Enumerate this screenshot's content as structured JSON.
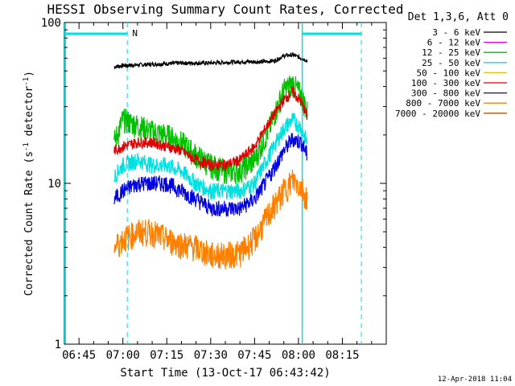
{
  "chart_data": {
    "type": "line",
    "title": "HESSI Observing Summary Count Rates, Corrected",
    "xlabel": "Start Time (13-Oct-17 06:43:42)",
    "ylabel_main": "Corrected Count Rate (s",
    "ylabel_sup1": "-1",
    "ylabel_mid": " detector",
    "ylabel_sup2": "-1",
    "ylabel_end": ")",
    "y_scale": "log",
    "ylim": [
      1,
      100
    ],
    "y_ticks": [
      {
        "value": 1,
        "label": "1"
      },
      {
        "value": 10,
        "label": "10"
      },
      {
        "value": 100,
        "label": "100"
      }
    ],
    "xlim_minutes": [
      -1.7,
      30.0
    ],
    "x_ticks": [
      {
        "value": -15,
        "label": "06:45"
      },
      {
        "value": 0,
        "label": "07:00"
      },
      {
        "value": 15,
        "label": "07:15"
      },
      {
        "value": 30,
        "label": "07:30"
      },
      {
        "value": 45,
        "label": "07:45"
      },
      {
        "value": 60,
        "label": "08:00"
      },
      {
        "value": 75,
        "label": "08:15"
      }
    ],
    "x_axis_minutes_from_0700": [
      -20,
      90
    ],
    "legend_header": "Det 1,3,6, Att 0",
    "legend_position": "right",
    "series": [
      {
        "name": "3 - 6 keV",
        "color": "#000000",
        "x": [
          -3,
          0,
          10,
          20,
          30,
          40,
          48,
          52,
          55,
          58,
          61,
          63
        ],
        "y": [
          53,
          54,
          55,
          56,
          56,
          57,
          57,
          58,
          62,
          63,
          60,
          58
        ]
      },
      {
        "name": "6 - 12 keV",
        "color": "#e000e0",
        "x": [],
        "y": []
      },
      {
        "name": "12 - 25 keV",
        "color": "#00c000",
        "x": [
          -3,
          0,
          5,
          10,
          15,
          20,
          25,
          30,
          35,
          40,
          45,
          50,
          55,
          58,
          61,
          63
        ],
        "y": [
          18,
          25,
          23,
          21,
          20,
          18,
          15,
          13,
          12,
          12,
          14,
          22,
          38,
          42,
          35,
          28
        ]
      },
      {
        "name": "25 - 50 keV",
        "color": "#00e0e0",
        "x": [
          -3,
          0,
          5,
          10,
          15,
          20,
          25,
          30,
          35,
          40,
          45,
          50,
          55,
          58,
          61,
          63
        ],
        "y": [
          11,
          13,
          14,
          13,
          13,
          12,
          10,
          9,
          9,
          9,
          10,
          15,
          22,
          25,
          22,
          18
        ]
      },
      {
        "name": "50 - 100 keV",
        "color": "#e0c000",
        "x": [],
        "y": []
      },
      {
        "name": "100 - 300 keV",
        "color": "#e00000",
        "x": [
          -3,
          0,
          5,
          10,
          15,
          20,
          25,
          30,
          35,
          40,
          45,
          50,
          55,
          58,
          61,
          63
        ],
        "y": [
          16,
          17,
          18,
          18,
          17,
          16,
          14,
          13,
          13,
          14,
          17,
          24,
          33,
          37,
          32,
          26
        ]
      },
      {
        "name": "300 - 800 keV",
        "color": "#0000e0",
        "x": [
          -3,
          0,
          5,
          10,
          15,
          20,
          25,
          30,
          35,
          40,
          45,
          50,
          55,
          58,
          61,
          63
        ],
        "y": [
          8,
          9,
          10,
          10,
          10,
          9,
          8,
          7,
          7,
          7,
          8,
          11,
          16,
          19,
          18,
          15
        ]
      },
      {
        "name": "800 - 7000 keV",
        "color": "#ff8000",
        "x": [
          -3,
          0,
          5,
          10,
          15,
          20,
          25,
          30,
          35,
          40,
          45,
          50,
          55,
          58,
          61,
          63
        ],
        "y": [
          4,
          4.5,
          5,
          5,
          4.5,
          4.2,
          4,
          3.6,
          3.6,
          3.7,
          4.5,
          6.5,
          9,
          10.5,
          9.5,
          8
        ]
      },
      {
        "name": "7000 - 20000 keV",
        "color": "#c05000",
        "x": [],
        "y": []
      }
    ],
    "annotations": [
      {
        "text": "N",
        "color": "#00e0e0"
      }
    ],
    "footer_date": "12-Apr-2018 11:04"
  }
}
